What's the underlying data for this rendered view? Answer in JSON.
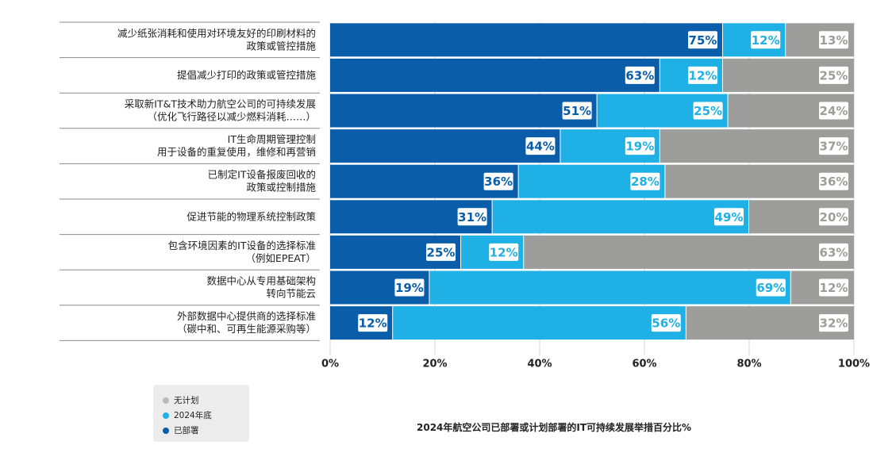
{
  "chart_data": {
    "type": "bar",
    "orientation": "horizontal",
    "stacked": true,
    "categories": [
      [
        "减少纸张消耗和使用对环境友好的印刷材料的",
        "政策或管控措施"
      ],
      [
        "提倡减少打印的政策或管控措施"
      ],
      [
        "采取新IT&T技术助力航空公司的可持续发展",
        "（优化飞行路径以减少燃料消耗……）"
      ],
      [
        "IT生命周期管理控制",
        "用于设备的重复使用，维修和再营销"
      ],
      [
        "已制定IT设备报废回收的",
        "政策或控制措施"
      ],
      [
        "促进节能的物理系统控制政策"
      ],
      [
        "包含环境因素的IT设备的选择标准",
        "（例如EPEAT）"
      ],
      [
        "数据中心从专用基础架构",
        "转向节能云"
      ],
      [
        "外部数据中心提供商的选择标准",
        "（碳中和、可再生能源采购等）"
      ]
    ],
    "series": [
      {
        "name": "已部署",
        "values": [
          75,
          63,
          51,
          44,
          36,
          31,
          25,
          19,
          12
        ],
        "color": "#0a5da8"
      },
      {
        "name": "2024年底",
        "values": [
          12,
          12,
          25,
          19,
          28,
          49,
          12,
          69,
          56
        ],
        "color": "#1fb0e6"
      },
      {
        "name": "无计划",
        "values": [
          13,
          25,
          24,
          37,
          36,
          20,
          63,
          12,
          32
        ],
        "color": "#9d9d9b"
      }
    ],
    "xlim": [
      0,
      100
    ],
    "xticks": [
      "0%",
      "20%",
      "40%",
      "60%",
      "80%",
      "100%"
    ],
    "value_suffix": "%",
    "legend_position": "bottom-left",
    "title": "2024年航空公司已部署或计划部署的IT可持续发展举措百分比%"
  },
  "legend": [
    {
      "label": "无计划",
      "color": "#b9b9b9"
    },
    {
      "label": "2024年底",
      "color": "#1fb0e6"
    },
    {
      "label": "已部署",
      "color": "#0a5da8"
    }
  ]
}
